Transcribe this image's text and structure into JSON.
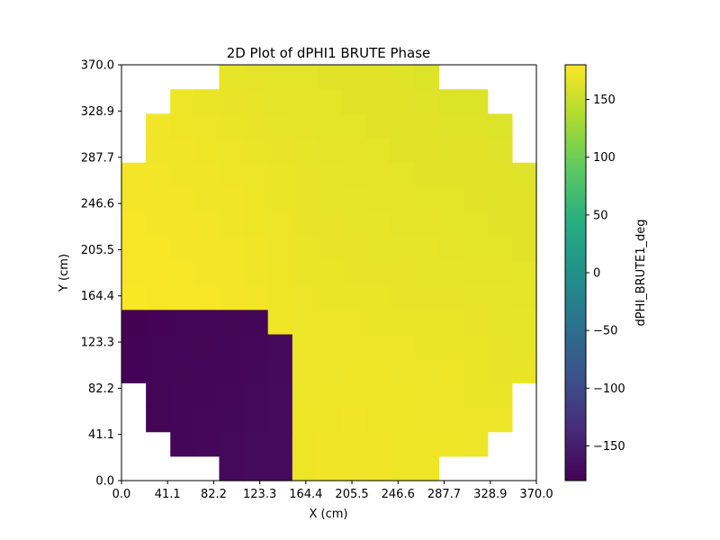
{
  "chart_data": {
    "type": "heatmap",
    "title": "2D Plot of dPHI1 BRUTE Phase",
    "xlabel": "X (cm)",
    "ylabel": "Y (cm)",
    "colorbar_label": "dPHI_BRUTE1_deg",
    "colormap": "viridis",
    "xlim": [
      0.0,
      370.0
    ],
    "ylim": [
      0.0,
      370.0
    ],
    "vlim": [
      -180,
      180
    ],
    "x_ticks": [
      "0.0",
      "41.1",
      "82.2",
      "123.3",
      "164.4",
      "205.5",
      "246.6",
      "287.7",
      "328.9",
      "370.0"
    ],
    "y_ticks": [
      "0.0",
      "41.1",
      "82.2",
      "123.3",
      "164.4",
      "205.5",
      "246.6",
      "287.7",
      "328.9",
      "370.0"
    ],
    "colorbar_ticks": [
      "150",
      "100",
      "50",
      "0",
      "−50",
      "−100",
      "−150"
    ],
    "colorbar_tick_values": [
      150,
      100,
      50,
      0,
      -50,
      -100,
      -150
    ],
    "grid": false,
    "cell_size": 21.76,
    "x_centers": [
      10.88,
      32.65,
      54.41,
      76.18,
      97.94,
      119.71,
      141.47,
      163.24,
      185.0,
      206.76,
      228.53,
      250.29,
      272.06,
      293.82,
      315.59,
      337.35,
      359.12
    ],
    "y_centers": [
      10.88,
      32.65,
      54.41,
      76.18,
      97.94,
      119.71,
      141.47,
      163.24,
      185.0,
      206.76,
      228.53,
      250.29,
      272.06,
      293.82,
      315.59,
      337.35,
      359.12
    ],
    "values": [
      [
        null,
        null,
        null,
        null,
        -172,
        -170,
        -168,
        172,
        173,
        173,
        173,
        172,
        172,
        null,
        null,
        null,
        null
      ],
      [
        null,
        null,
        -175,
        -174,
        -172,
        -170,
        -169,
        172,
        173,
        173,
        173,
        172,
        172,
        172,
        171,
        null,
        null
      ],
      [
        null,
        -176,
        -175,
        -174,
        -173,
        -172,
        -170,
        172,
        172,
        173,
        172,
        172,
        171,
        171,
        171,
        171,
        null
      ],
      [
        null,
        -176,
        -175,
        -175,
        -174,
        -172,
        -170,
        171,
        172,
        172,
        172,
        172,
        171,
        171,
        170,
        170,
        null
      ],
      [
        -178,
        -177,
        -176,
        -175,
        -175,
        -173,
        -171,
        171,
        171,
        172,
        172,
        171,
        171,
        172,
        170,
        169,
        169
      ],
      [
        -178,
        -177,
        -177,
        -176,
        -175,
        -174,
        -172,
        171,
        171,
        171,
        171,
        171,
        170,
        170,
        170,
        169,
        168
      ],
      [
        -179,
        -178,
        -177,
        -177,
        -176,
        -175,
        172,
        171,
        171,
        171,
        170,
        170,
        170,
        170,
        169,
        168,
        168
      ],
      [
        178,
        177,
        177,
        176,
        175,
        174,
        172,
        171,
        170,
        170,
        170,
        169,
        169,
        169,
        168,
        168,
        167
      ],
      [
        177,
        177,
        176,
        175,
        174,
        173,
        172,
        170,
        170,
        169,
        169,
        169,
        168,
        168,
        167,
        167,
        166
      ],
      [
        177,
        176,
        175,
        175,
        174,
        173,
        171,
        170,
        169,
        169,
        168,
        168,
        168,
        167,
        166,
        166,
        165
      ],
      [
        176,
        175,
        175,
        174,
        173,
        172,
        171,
        169,
        169,
        168,
        168,
        167,
        167,
        166,
        166,
        165,
        165
      ],
      [
        175,
        175,
        174,
        173,
        173,
        172,
        170,
        169,
        168,
        168,
        167,
        167,
        166,
        166,
        165,
        164,
        164
      ],
      [
        175,
        174,
        173,
        173,
        172,
        171,
        170,
        169,
        168,
        167,
        167,
        166,
        165,
        165,
        164,
        164,
        163
      ],
      [
        null,
        173,
        173,
        172,
        171,
        170,
        169,
        168,
        167,
        167,
        166,
        165,
        165,
        164,
        164,
        163,
        null
      ],
      [
        null,
        173,
        172,
        171,
        170,
        169,
        168,
        167,
        166,
        166,
        165,
        164,
        164,
        163,
        163,
        162,
        null
      ],
      [
        null,
        null,
        171,
        170,
        169,
        168,
        167,
        167,
        166,
        165,
        164,
        164,
        163,
        162,
        162,
        null,
        null
      ],
      [
        null,
        null,
        null,
        null,
        168,
        167,
        166,
        166,
        165,
        164,
        164,
        163,
        162,
        null,
        null,
        null,
        null
      ]
    ]
  }
}
